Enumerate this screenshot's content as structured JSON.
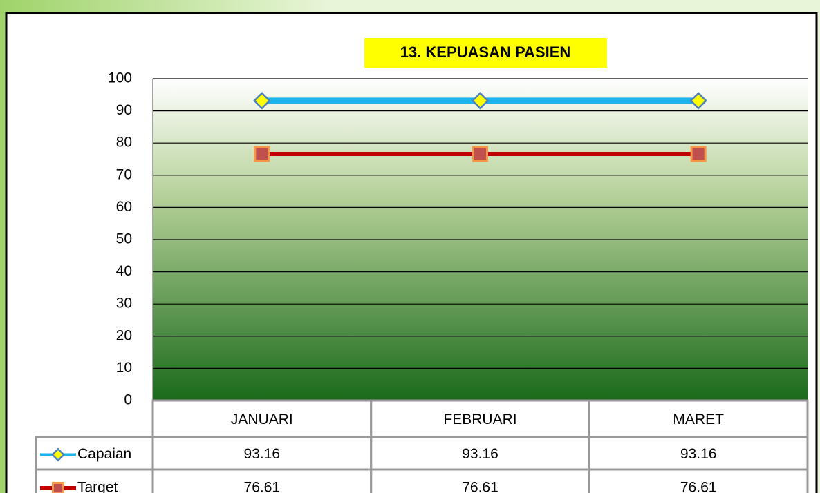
{
  "chart_data": {
    "type": "line",
    "title": "13. KEPUASAN PASIEN",
    "categories": [
      "JANUARI",
      "FEBRUARI",
      "MARET"
    ],
    "series": [
      {
        "name": "Capaian",
        "color": "#1cb4ea",
        "marker_color": "#ffff00",
        "values": [
          93.16,
          93.16,
          93.16
        ]
      },
      {
        "name": "Target",
        "color": "#c00000",
        "marker_color": "#c0504d",
        "values": [
          76.61,
          76.61,
          76.61
        ]
      }
    ],
    "ylim": [
      0,
      100
    ],
    "yticks": [
      0,
      10,
      20,
      30,
      40,
      50,
      60,
      70,
      80,
      90,
      100
    ],
    "grid": true
  }
}
